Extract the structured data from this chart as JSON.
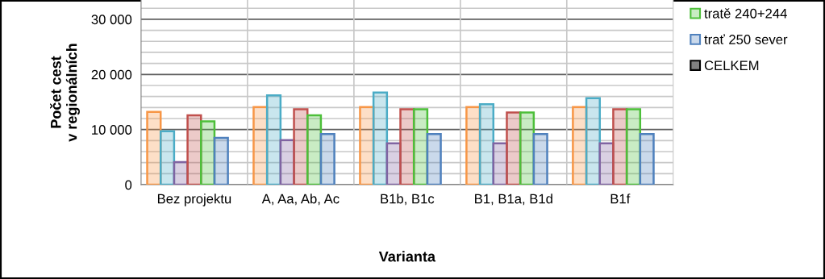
{
  "chart_data": {
    "type": "bar",
    "xlabel": "Varianta",
    "ylabel": "Počet cest\nv regionálních",
    "categories": [
      "Bez projektu",
      "A, Aa, Ab, Ac",
      "B1b, B1c",
      "B1, B1a, B1d",
      "B1f"
    ],
    "series": [
      {
        "color": "#f79646",
        "values": [
          13200,
          14100,
          14100,
          14100,
          14100
        ]
      },
      {
        "color": "#4bacc6",
        "values": [
          9700,
          16200,
          16700,
          14600,
          15700
        ]
      },
      {
        "color": "#8064a2",
        "values": [
          4100,
          8100,
          7500,
          7500,
          7500
        ]
      },
      {
        "color": "#c0504d",
        "values": [
          12600,
          13700,
          13700,
          13100,
          13700
        ]
      },
      {
        "name": "tratě 240+244",
        "color": "#4dbf3a",
        "values": [
          11500,
          12600,
          13700,
          13100,
          13700
        ]
      },
      {
        "name": "trať 250 sever",
        "color": "#4f81bd",
        "values": [
          8500,
          9200,
          9200,
          9200,
          9200
        ]
      },
      {
        "name": "CELKEM",
        "color": "#808080",
        "values": [
          null,
          null,
          null,
          null,
          null
        ]
      }
    ],
    "ylim": [
      0,
      33500
    ],
    "yticks": [
      {
        "value": 0,
        "label": "0"
      },
      {
        "value": 2000,
        "label": null
      },
      {
        "value": 4000,
        "label": null
      },
      {
        "value": 6000,
        "label": null
      },
      {
        "value": 8000,
        "label": null
      },
      {
        "value": 10000,
        "label": "10 000"
      },
      {
        "value": 12000,
        "label": null
      },
      {
        "value": 14000,
        "label": null
      },
      {
        "value": 16000,
        "label": null
      },
      {
        "value": 18000,
        "label": null
      },
      {
        "value": 20000,
        "label": "20 000"
      },
      {
        "value": 22000,
        "label": null
      },
      {
        "value": 24000,
        "label": null
      },
      {
        "value": 26000,
        "label": null
      },
      {
        "value": 28000,
        "label": null
      },
      {
        "value": 30000,
        "label": "30 000"
      },
      {
        "value": 32000,
        "label": null
      }
    ],
    "grid": true,
    "legend": "top right"
  }
}
